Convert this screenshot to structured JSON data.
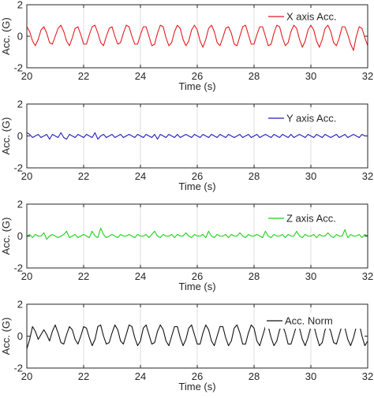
{
  "chart_data": [
    {
      "type": "line",
      "title": "",
      "xlabel": "Time (s)",
      "ylabel": "Acc. (G)",
      "xlim": [
        20,
        32
      ],
      "ylim": [
        -2,
        2
      ],
      "xticks": [
        "20",
        "22",
        "24",
        "26",
        "28",
        "30",
        "32"
      ],
      "yticks": [
        "2",
        "0",
        "-2"
      ],
      "grid": "vertical",
      "legend_position": "top-right",
      "series": [
        {
          "name": "X axis Acc.",
          "color": "#e41a1c",
          "x": [
            20.0,
            20.1,
            20.2,
            20.3,
            20.4,
            20.5,
            20.6,
            20.7,
            20.8,
            20.9,
            21.0,
            21.1,
            21.2,
            21.3,
            21.4,
            21.5,
            21.6,
            21.7,
            21.8,
            21.9,
            22.0,
            22.1,
            22.2,
            22.3,
            22.4,
            22.5,
            22.6,
            22.7,
            22.8,
            22.9,
            23.0,
            23.1,
            23.2,
            23.3,
            23.4,
            23.5,
            23.6,
            23.7,
            23.8,
            23.9,
            24.0,
            24.1,
            24.2,
            24.3,
            24.4,
            24.5,
            24.6,
            24.7,
            24.8,
            24.9,
            25.0,
            25.1,
            25.2,
            25.3,
            25.4,
            25.5,
            25.6,
            25.7,
            25.8,
            25.9,
            26.0,
            26.1,
            26.2,
            26.3,
            26.4,
            26.5,
            26.6,
            26.7,
            26.8,
            26.9,
            27.0,
            27.1,
            27.2,
            27.3,
            27.4,
            27.5,
            27.6,
            27.7,
            27.8,
            27.9,
            28.0,
            28.1,
            28.2,
            28.3,
            28.4,
            28.5,
            28.6,
            28.7,
            28.8,
            28.9,
            29.0,
            29.1,
            29.2,
            29.3,
            29.4,
            29.5,
            29.6,
            29.7,
            29.8,
            29.9,
            30.0,
            30.1,
            30.2,
            30.3,
            30.4,
            30.5,
            30.6,
            30.7,
            30.8,
            30.9,
            31.0,
            31.1,
            31.2,
            31.3,
            31.4,
            31.5,
            31.6,
            31.7,
            31.8,
            31.9,
            32.0
          ],
          "y": [
            0.6,
            0.3,
            -0.3,
            -0.6,
            -0.2,
            0.4,
            0.6,
            0.2,
            -0.4,
            -0.5,
            0.0,
            0.5,
            0.7,
            0.3,
            -0.3,
            -0.6,
            -0.1,
            0.5,
            0.6,
            0.1,
            -0.5,
            -0.5,
            0.1,
            0.6,
            0.7,
            0.2,
            -0.4,
            -0.6,
            0.0,
            0.5,
            0.6,
            0.0,
            -0.5,
            -0.4,
            0.2,
            0.7,
            0.6,
            0.0,
            -0.5,
            -0.5,
            0.1,
            0.6,
            0.6,
            0.0,
            -0.6,
            -0.5,
            0.2,
            0.7,
            0.6,
            -0.1,
            -0.6,
            -0.4,
            0.3,
            0.7,
            0.5,
            -0.2,
            -0.6,
            -0.3,
            0.4,
            0.7,
            0.4,
            -0.3,
            -0.7,
            -0.2,
            0.5,
            0.7,
            0.3,
            -0.4,
            -0.6,
            -0.1,
            0.5,
            0.6,
            0.2,
            -0.5,
            -0.6,
            0.0,
            0.6,
            0.7,
            0.1,
            -0.5,
            -0.5,
            0.1,
            0.6,
            0.6,
            0.0,
            -0.6,
            -0.5,
            0.2,
            0.7,
            0.6,
            -0.1,
            -0.6,
            -0.4,
            0.3,
            0.7,
            0.5,
            -0.2,
            -0.7,
            -0.3,
            0.4,
            0.7,
            0.4,
            -0.3,
            -0.7,
            -0.2,
            0.5,
            0.7,
            0.3,
            -0.4,
            -0.6,
            -0.1,
            0.6,
            0.6,
            0.1,
            -0.5,
            -0.9,
            0.0,
            0.6,
            0.5,
            -0.1,
            -0.6
          ]
        }
      ]
    },
    {
      "type": "line",
      "title": "",
      "xlabel": "Time (s)",
      "ylabel": "Acc. (G)",
      "xlim": [
        20,
        32
      ],
      "ylim": [
        -2,
        2
      ],
      "xticks": [
        "20",
        "22",
        "24",
        "26",
        "28",
        "30",
        "32"
      ],
      "yticks": [
        "2",
        "0",
        "-2"
      ],
      "grid": "vertical",
      "legend_position": "top-right",
      "series": [
        {
          "name": "Y axis Acc.",
          "color": "#1f1fbf",
          "x": [
            20.0,
            20.1,
            20.2,
            20.3,
            20.4,
            20.5,
            20.6,
            20.7,
            20.8,
            20.9,
            21.0,
            21.1,
            21.2,
            21.3,
            21.4,
            21.5,
            21.6,
            21.7,
            21.8,
            21.9,
            22.0,
            22.1,
            22.2,
            22.3,
            22.4,
            22.5,
            22.6,
            22.7,
            22.8,
            22.9,
            23.0,
            23.1,
            23.2,
            23.3,
            23.4,
            23.5,
            23.6,
            23.7,
            23.8,
            23.9,
            24.0,
            24.1,
            24.2,
            24.3,
            24.4,
            24.5,
            24.6,
            24.7,
            24.8,
            24.9,
            25.0,
            25.1,
            25.2,
            25.3,
            25.4,
            25.5,
            25.6,
            25.7,
            25.8,
            25.9,
            26.0,
            26.1,
            26.2,
            26.3,
            26.4,
            26.5,
            26.6,
            26.7,
            26.8,
            26.9,
            27.0,
            27.1,
            27.2,
            27.3,
            27.4,
            27.5,
            27.6,
            27.7,
            27.8,
            27.9,
            28.0,
            28.1,
            28.2,
            28.3,
            28.4,
            28.5,
            28.6,
            28.7,
            28.8,
            28.9,
            29.0,
            29.1,
            29.2,
            29.3,
            29.4,
            29.5,
            29.6,
            29.7,
            29.8,
            29.9,
            30.0,
            30.1,
            30.2,
            30.3,
            30.4,
            30.5,
            30.6,
            30.7,
            30.8,
            30.9,
            31.0,
            31.1,
            31.2,
            31.3,
            31.4,
            31.5,
            31.6,
            31.7,
            31.8,
            31.9,
            32.0
          ],
          "y": [
            0.2,
            0.1,
            -0.1,
            0.0,
            0.1,
            -0.1,
            0.0,
            0.1,
            -0.2,
            0.1,
            0.0,
            -0.1,
            0.2,
            -0.1,
            -0.2,
            0.1,
            0.0,
            -0.1,
            0.1,
            0.0,
            -0.1,
            0.1,
            0.0,
            -0.1,
            0.2,
            -0.2,
            0.0,
            0.1,
            -0.1,
            0.0,
            0.1,
            -0.1,
            0.0,
            0.1,
            -0.1,
            0.0,
            0.1,
            0.0,
            -0.1,
            0.1,
            0.0,
            -0.1,
            0.1,
            0.0,
            -0.1,
            0.1,
            -0.2,
            0.1,
            0.0,
            -0.1,
            0.1,
            0.0,
            -0.1,
            0.1,
            -0.1,
            0.0,
            0.1,
            0.0,
            -0.1,
            0.1,
            0.0,
            -0.1,
            0.1,
            0.0,
            -0.1,
            0.1,
            0.0,
            -0.1,
            0.1,
            0.0,
            -0.1,
            0.1,
            0.0,
            -0.1,
            0.0,
            0.1,
            -0.1,
            0.0,
            0.1,
            -0.1,
            0.0,
            0.1,
            -0.1,
            0.0,
            0.1,
            0.0,
            -0.1,
            0.1,
            0.0,
            -0.1,
            0.1,
            0.0,
            -0.1,
            0.1,
            -0.1,
            0.0,
            0.1,
            0.0,
            -0.1,
            0.1,
            0.0,
            -0.1,
            0.1,
            0.0,
            -0.1,
            0.1,
            0.0,
            -0.1,
            0.0,
            0.1,
            -0.1,
            0.0,
            0.1,
            -0.1,
            0.0,
            0.1,
            0.0,
            -0.1,
            0.1,
            0.0,
            0.0
          ]
        }
      ]
    },
    {
      "type": "line",
      "title": "",
      "xlabel": "Time (s)",
      "ylabel": "Acc. (G)",
      "xlim": [
        20,
        32
      ],
      "ylim": [
        -2,
        2
      ],
      "xticks": [
        "20",
        "22",
        "24",
        "26",
        "28",
        "30",
        "32"
      ],
      "yticks": [
        "2",
        "0",
        "-2"
      ],
      "grid": "vertical",
      "legend_position": "top-right",
      "series": [
        {
          "name": "Z axis Acc.",
          "color": "#1fd11f",
          "x": [
            20.0,
            20.1,
            20.2,
            20.3,
            20.4,
            20.5,
            20.6,
            20.7,
            20.8,
            20.9,
            21.0,
            21.1,
            21.2,
            21.3,
            21.4,
            21.5,
            21.6,
            21.7,
            21.8,
            21.9,
            22.0,
            22.1,
            22.2,
            22.3,
            22.4,
            22.5,
            22.6,
            22.7,
            22.8,
            22.9,
            23.0,
            23.1,
            23.2,
            23.3,
            23.4,
            23.5,
            23.6,
            23.7,
            23.8,
            23.9,
            24.0,
            24.1,
            24.2,
            24.3,
            24.4,
            24.5,
            24.6,
            24.7,
            24.8,
            24.9,
            25.0,
            25.1,
            25.2,
            25.3,
            25.4,
            25.5,
            25.6,
            25.7,
            25.8,
            25.9,
            26.0,
            26.1,
            26.2,
            26.3,
            26.4,
            26.5,
            26.6,
            26.7,
            26.8,
            26.9,
            27.0,
            27.1,
            27.2,
            27.3,
            27.4,
            27.5,
            27.6,
            27.7,
            27.8,
            27.9,
            28.0,
            28.1,
            28.2,
            28.3,
            28.4,
            28.5,
            28.6,
            28.7,
            28.8,
            28.9,
            29.0,
            29.1,
            29.2,
            29.3,
            29.4,
            29.5,
            29.6,
            29.7,
            29.8,
            29.9,
            30.0,
            30.1,
            30.2,
            30.3,
            30.4,
            30.5,
            30.6,
            30.7,
            30.8,
            30.9,
            31.0,
            31.1,
            31.2,
            31.3,
            31.4,
            31.5,
            31.6,
            31.7,
            31.8,
            31.9,
            32.0
          ],
          "y": [
            0.0,
            0.1,
            -0.1,
            0.1,
            0.0,
            0.0,
            0.2,
            -0.2,
            0.0,
            0.1,
            0.0,
            -0.1,
            0.0,
            0.1,
            0.3,
            -0.1,
            0.0,
            0.1,
            -0.1,
            0.0,
            0.1,
            0.0,
            -0.1,
            0.3,
            0.0,
            -0.1,
            0.5,
            0.1,
            -0.1,
            0.0,
            0.1,
            0.0,
            -0.1,
            0.1,
            0.0,
            0.0,
            0.1,
            0.0,
            -0.1,
            0.1,
            0.0,
            0.0,
            0.1,
            -0.1,
            0.1,
            0.3,
            0.0,
            -0.1,
            0.1,
            0.0,
            0.0,
            0.1,
            -0.1,
            0.1,
            0.0,
            0.0,
            0.2,
            0.0,
            -0.1,
            0.1,
            0.0,
            0.0,
            0.1,
            -0.1,
            0.3,
            0.0,
            -0.1,
            0.1,
            0.0,
            0.0,
            0.1,
            -0.1,
            0.1,
            0.0,
            0.0,
            0.2,
            0.0,
            -0.1,
            0.1,
            0.0,
            0.0,
            0.1,
            0.0,
            -0.1,
            0.3,
            0.0,
            -0.1,
            0.1,
            0.0,
            0.0,
            0.1,
            -0.1,
            0.1,
            0.0,
            0.0,
            0.3,
            0.0,
            -0.1,
            0.1,
            0.0,
            0.0,
            0.1,
            -0.1,
            0.1,
            0.0,
            0.0,
            0.2,
            0.0,
            -0.1,
            0.1,
            0.0,
            0.0,
            0.4,
            -0.1,
            0.1,
            0.0,
            0.0,
            0.1,
            -0.1,
            0.1,
            0.0
          ]
        }
      ]
    },
    {
      "type": "line",
      "title": "",
      "xlabel": "Time (s)",
      "ylabel": "Acc. (G)",
      "xlim": [
        20,
        32
      ],
      "ylim": [
        -2,
        2
      ],
      "xticks": [
        "20",
        "22",
        "24",
        "26",
        "28",
        "30",
        "32"
      ],
      "yticks": [
        "2",
        "0",
        "-2"
      ],
      "grid": "vertical",
      "legend_position": "top-right",
      "series": [
        {
          "name": "Acc. Norm",
          "color": "#111111",
          "x": [
            20.0,
            20.1,
            20.2,
            20.3,
            20.4,
            20.5,
            20.6,
            20.7,
            20.8,
            20.9,
            21.0,
            21.1,
            21.2,
            21.3,
            21.4,
            21.5,
            21.6,
            21.7,
            21.8,
            21.9,
            22.0,
            22.1,
            22.2,
            22.3,
            22.4,
            22.5,
            22.6,
            22.7,
            22.8,
            22.9,
            23.0,
            23.1,
            23.2,
            23.3,
            23.4,
            23.5,
            23.6,
            23.7,
            23.8,
            23.9,
            24.0,
            24.1,
            24.2,
            24.3,
            24.4,
            24.5,
            24.6,
            24.7,
            24.8,
            24.9,
            25.0,
            25.1,
            25.2,
            25.3,
            25.4,
            25.5,
            25.6,
            25.7,
            25.8,
            25.9,
            26.0,
            26.1,
            26.2,
            26.3,
            26.4,
            26.5,
            26.6,
            26.7,
            26.8,
            26.9,
            27.0,
            27.1,
            27.2,
            27.3,
            27.4,
            27.5,
            27.6,
            27.7,
            27.8,
            27.9,
            28.0,
            28.1,
            28.2,
            28.3,
            28.4,
            28.5,
            28.6,
            28.7,
            28.8,
            28.9,
            29.0,
            29.1,
            29.2,
            29.3,
            29.4,
            29.5,
            29.6,
            29.7,
            29.8,
            29.9,
            30.0,
            30.1,
            30.2,
            30.3,
            30.4,
            30.5,
            30.6,
            30.7,
            30.8,
            30.9,
            31.0,
            31.1,
            31.2,
            31.3,
            31.4,
            31.5,
            31.6,
            31.7,
            31.8,
            31.9,
            32.0
          ],
          "y": [
            -0.8,
            -0.2,
            0.6,
            0.3,
            -0.2,
            0.1,
            0.4,
            0.1,
            -0.3,
            0.3,
            0.7,
            0.2,
            -0.4,
            -0.5,
            0.1,
            0.6,
            0.4,
            -0.2,
            -0.5,
            0.0,
            0.6,
            0.5,
            -0.1,
            -0.6,
            -0.2,
            0.6,
            0.7,
            0.0,
            -0.5,
            -0.4,
            0.2,
            0.7,
            0.4,
            -0.3,
            -0.5,
            0.1,
            0.7,
            0.6,
            -0.1,
            -0.6,
            -0.3,
            0.5,
            0.7,
            0.1,
            -0.5,
            -0.4,
            0.3,
            0.7,
            0.4,
            -0.3,
            -0.6,
            0.0,
            0.6,
            0.6,
            -0.1,
            -0.6,
            -0.2,
            0.5,
            0.7,
            0.1,
            -0.5,
            -0.5,
            0.2,
            0.7,
            0.4,
            -0.3,
            -0.6,
            0.0,
            0.6,
            0.6,
            -0.1,
            -0.6,
            -0.3,
            0.5,
            0.7,
            0.2,
            -0.5,
            -0.5,
            0.2,
            0.7,
            0.5,
            -0.3,
            -0.6,
            0.0,
            0.6,
            0.6,
            -0.1,
            -0.6,
            -0.3,
            0.4,
            0.7,
            0.2,
            -0.5,
            -0.5,
            0.1,
            0.7,
            0.5,
            -0.2,
            -0.6,
            -0.1,
            0.6,
            0.7,
            0.0,
            -0.6,
            -0.4,
            0.4,
            0.7,
            0.3,
            -0.4,
            -0.5,
            0.1,
            0.7,
            0.5,
            -0.2,
            -0.6,
            -0.1,
            0.6,
            0.8,
            0.0,
            -0.6,
            -0.3
          ]
        }
      ]
    }
  ]
}
